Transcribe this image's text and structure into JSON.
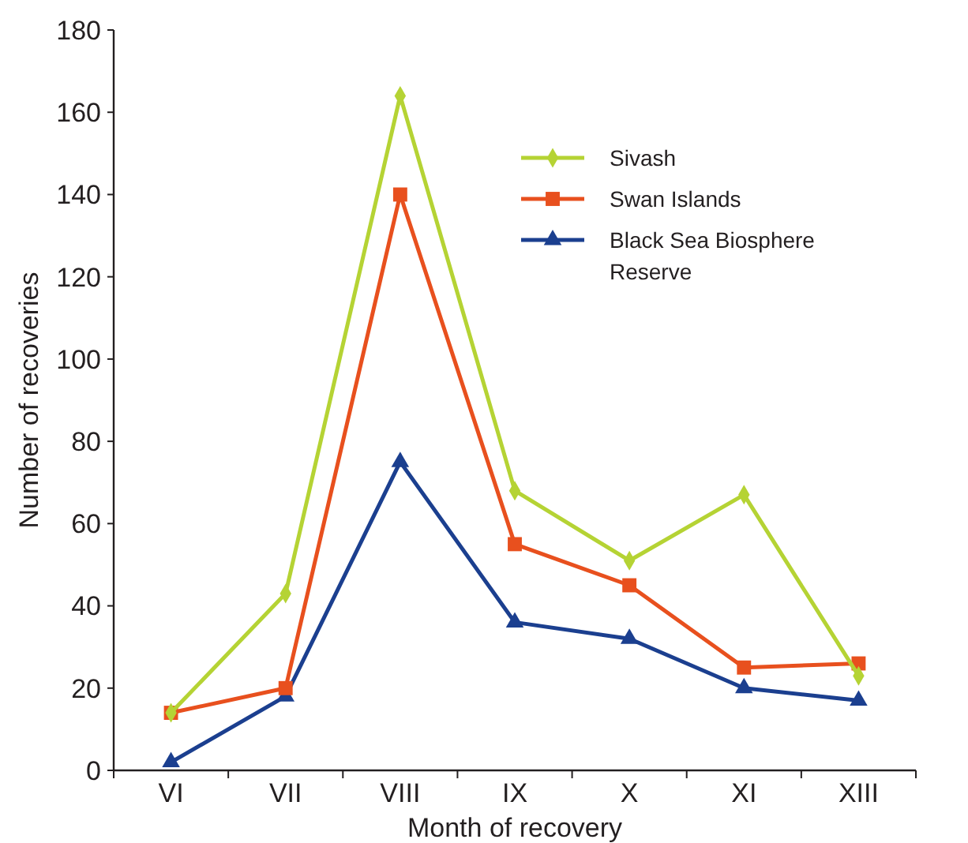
{
  "chart_data": {
    "type": "line",
    "xlabel": "Month of recovery",
    "ylabel": "Number of recoveries",
    "categories": [
      "VI",
      "VII",
      "VIII",
      "IX",
      "X",
      "XI",
      "XIII"
    ],
    "ylim": [
      0,
      180
    ],
    "yticks": [
      0,
      20,
      40,
      60,
      80,
      100,
      120,
      140,
      160,
      180
    ],
    "grid": false,
    "legend": "top right",
    "line_style": "solid",
    "series": [
      {
        "name": "Sivash",
        "color": "#b5d334",
        "marker": "diamond",
        "values": [
          14,
          43,
          164,
          68,
          51,
          67,
          23
        ]
      },
      {
        "name": "Swan Islands",
        "color": "#e8501e",
        "marker": "square",
        "values": [
          14,
          20,
          140,
          55,
          45,
          25,
          26
        ]
      },
      {
        "name": "Black Sea Biosphere Reserve",
        "color": "#1b3f8f",
        "marker": "triangle",
        "values": [
          2,
          18,
          75,
          36,
          32,
          20,
          17
        ]
      }
    ]
  }
}
